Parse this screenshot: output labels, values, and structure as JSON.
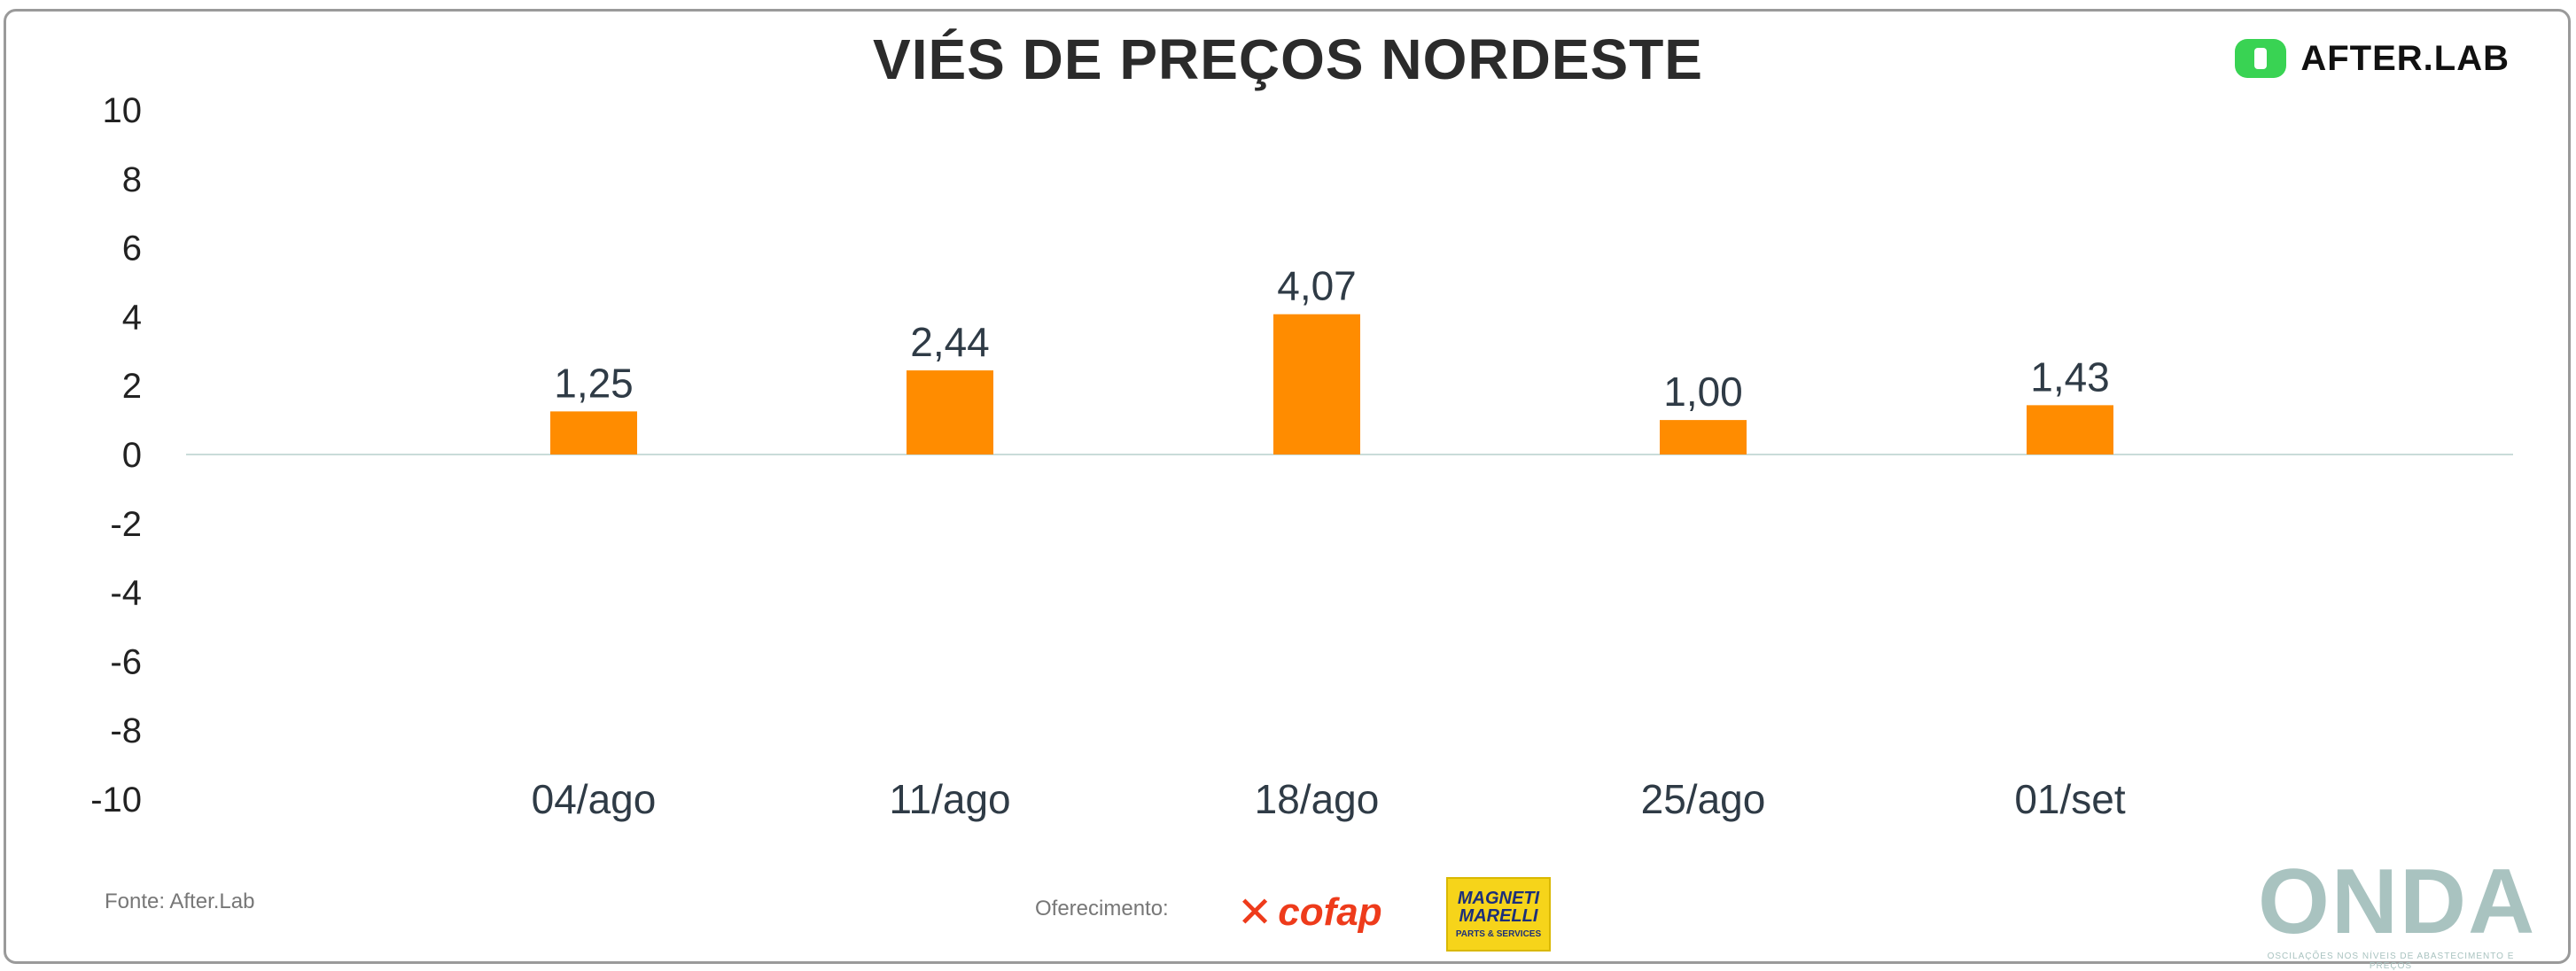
{
  "title": "VIÉS DE PREÇOS NORDESTE",
  "brand": {
    "name": "AFTER.LAB",
    "color": "#39d353"
  },
  "chart_data": {
    "type": "bar",
    "title": "VIÉS DE PREÇOS NORDESTE",
    "xlabel": "",
    "ylabel": "",
    "categories": [
      "04/ago",
      "11/ago",
      "18/ago",
      "25/ago",
      "01/set"
    ],
    "values": [
      1.25,
      2.44,
      4.07,
      1.0,
      1.43
    ],
    "value_labels": [
      "1,25",
      "2,44",
      "4,07",
      "1,00",
      "1,43"
    ],
    "ylim": [
      -10,
      10
    ],
    "yticks": [
      "10",
      "8",
      "6",
      "4",
      "2",
      "0",
      "-2",
      "-4",
      "-6",
      "-8",
      "-10"
    ],
    "bar_color": "#ff8c00",
    "grid": false,
    "legend": "none"
  },
  "footer": {
    "source": "Fonte: After.Lab",
    "sponsor_label": "Oferecimento:",
    "sponsor1": "cofap",
    "sponsor2_line1": "MAGNETI",
    "sponsor2_line2": "MARELLI",
    "sponsor2_line3": "PARTS & SERVICES",
    "onda": "ONDA",
    "onda_tagline": "OSCILAÇÕES NOS NÍVEIS DE ABASTECIMENTO E PREÇOS"
  }
}
